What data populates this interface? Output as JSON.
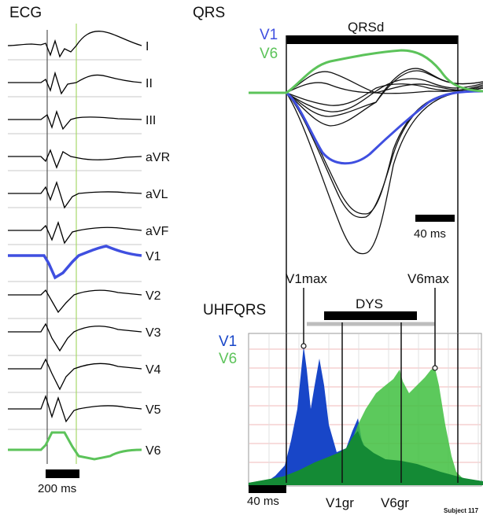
{
  "ecg": {
    "title": "ECG",
    "leads": [
      "I",
      "II",
      "III",
      "aVR",
      "aVL",
      "aVF",
      "V1",
      "V2",
      "V3",
      "V4",
      "V5",
      "V6"
    ],
    "scale_bar_label": "200 ms",
    "colors": {
      "trace": "#000000",
      "v1": "#3f4fe0",
      "v6": "#5cc35a",
      "marker": "#a8d86a"
    }
  },
  "qrs": {
    "title": "QRS",
    "legend_v1": "V1",
    "legend_v6": "V6",
    "duration_label": "QRSd",
    "scale_bar_label": "40 ms"
  },
  "uhfqrs": {
    "title": "UHFQRS",
    "legend_v1": "V1",
    "legend_v6": "V6",
    "v1max_label": "V1max",
    "v6max_label": "V6max",
    "dys_label": "DYS",
    "v1gr_label": "V1gr",
    "v6gr_label": "V6gr",
    "scale_bar_label": "40 ms",
    "colors": {
      "v1_fill": "#1846c8",
      "v6_fill": "#3fbf3f",
      "overlap_fill": "#148a35",
      "grid": "#f2b8b8"
    }
  },
  "footer": {
    "subject": "Subject 117"
  }
}
